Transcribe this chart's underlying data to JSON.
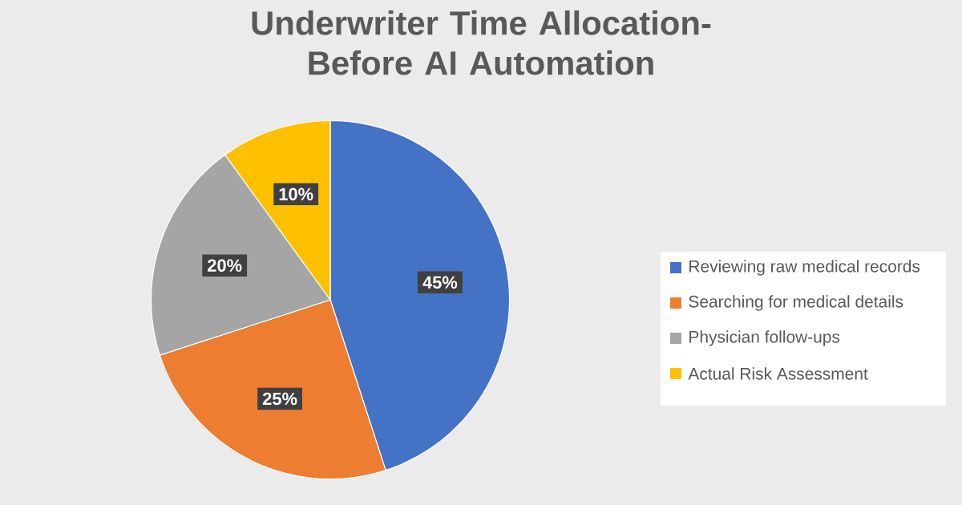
{
  "chart_data": {
    "type": "pie",
    "title": "Underwriter Time Allocation- Before AI Automation",
    "categories": [
      "Reviewing raw medical records",
      "Searching for medical details",
      "Physician follow-ups",
      "Actual Risk Assessment"
    ],
    "values": [
      45,
      25,
      20,
      10
    ],
    "colors": [
      "#4472c4",
      "#ed7d31",
      "#a5a5a5",
      "#ffc000"
    ],
    "value_labels": [
      "45%",
      "25%",
      "20%",
      "10%"
    ],
    "legend": "right"
  }
}
